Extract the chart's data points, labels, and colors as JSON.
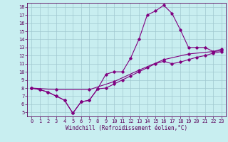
{
  "bg_color": "#c8eef0",
  "line_color": "#800080",
  "grid_color": "#a0c8d0",
  "spine_color": "#5a005a",
  "tick_color": "#5a005a",
  "xlabel": "Windchill (Refroidissement éolien,°C)",
  "xlim": [
    -0.5,
    23.5
  ],
  "ylim": [
    4.5,
    18.5
  ],
  "xticks": [
    0,
    1,
    2,
    3,
    4,
    5,
    6,
    7,
    8,
    9,
    10,
    11,
    12,
    13,
    14,
    15,
    16,
    17,
    18,
    19,
    20,
    21,
    22,
    23
  ],
  "yticks": [
    5,
    6,
    7,
    8,
    9,
    10,
    11,
    12,
    13,
    14,
    15,
    16,
    17,
    18
  ],
  "line1_x": [
    0,
    1,
    2,
    3,
    4,
    5,
    6,
    7,
    8,
    9,
    10,
    11,
    12,
    13,
    14,
    15,
    16,
    17,
    18,
    19,
    20,
    21,
    22,
    23
  ],
  "line1_y": [
    8.0,
    7.8,
    7.5,
    7.0,
    6.5,
    4.9,
    6.3,
    6.5,
    7.9,
    9.7,
    10.0,
    10.0,
    11.7,
    14.0,
    17.0,
    17.5,
    18.2,
    17.2,
    15.2,
    13.0,
    13.0,
    13.0,
    12.5,
    12.8
  ],
  "line2_x": [
    0,
    1,
    2,
    3,
    4,
    5,
    6,
    7,
    8,
    9,
    10,
    11,
    12,
    13,
    14,
    15,
    16,
    17,
    18,
    19,
    20,
    21,
    22,
    23
  ],
  "line2_y": [
    8.0,
    7.8,
    7.5,
    7.0,
    6.5,
    4.9,
    6.3,
    6.5,
    7.9,
    8.0,
    8.5,
    9.0,
    9.5,
    10.0,
    10.5,
    11.0,
    11.3,
    11.0,
    11.2,
    11.5,
    11.8,
    12.0,
    12.3,
    12.5
  ],
  "line3_x": [
    0,
    3,
    7,
    10,
    13,
    16,
    19,
    22,
    23
  ],
  "line3_y": [
    8.0,
    7.8,
    7.8,
    8.8,
    10.2,
    11.5,
    12.2,
    12.5,
    12.6
  ],
  "tick_fontsize": 5,
  "xlabel_fontsize": 5.5
}
